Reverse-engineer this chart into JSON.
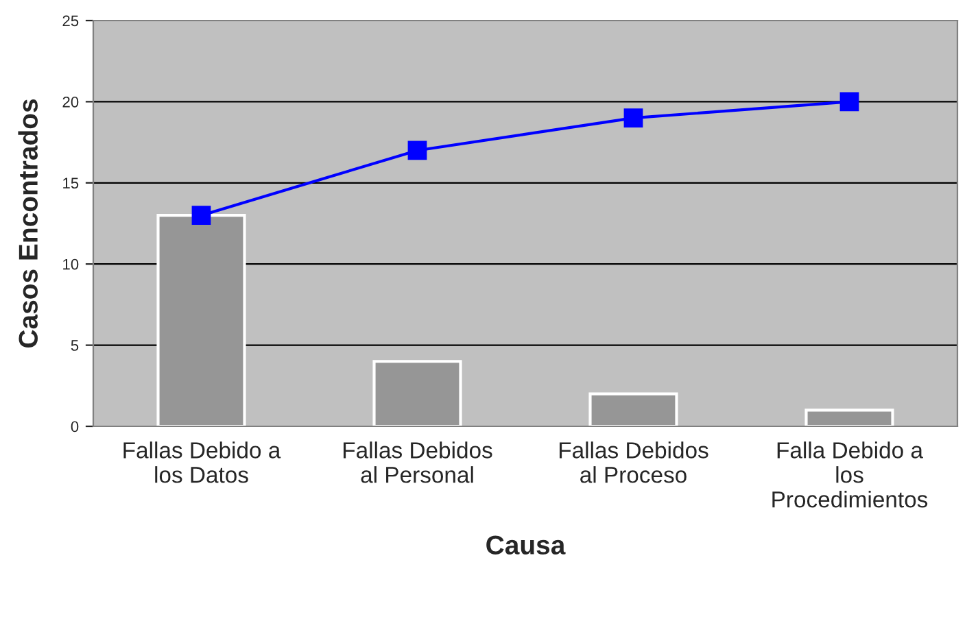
{
  "chart_data": {
    "type": "bar",
    "xlabel": "Causa",
    "ylabel": "Casos Encontrados",
    "categories": [
      "Fallas Debido a\nlos Datos",
      "Fallas Debidos\nal Personal",
      "Fallas Debidos\nal Proceso",
      "Falla Debido a\nlos\nProcedimientos"
    ],
    "series": [
      {
        "color": "#969696",
        "values": [
          13,
          4,
          2,
          1
        ]
      },
      {
        "type": "line",
        "color": "#0000ff",
        "values": [
          13,
          17,
          19,
          20
        ],
        "marker": "square"
      }
    ],
    "ylim": [
      0,
      25
    ],
    "yticks": [
      0,
      5,
      10,
      15,
      20,
      25
    ],
    "grid": "y",
    "legend": false
  }
}
